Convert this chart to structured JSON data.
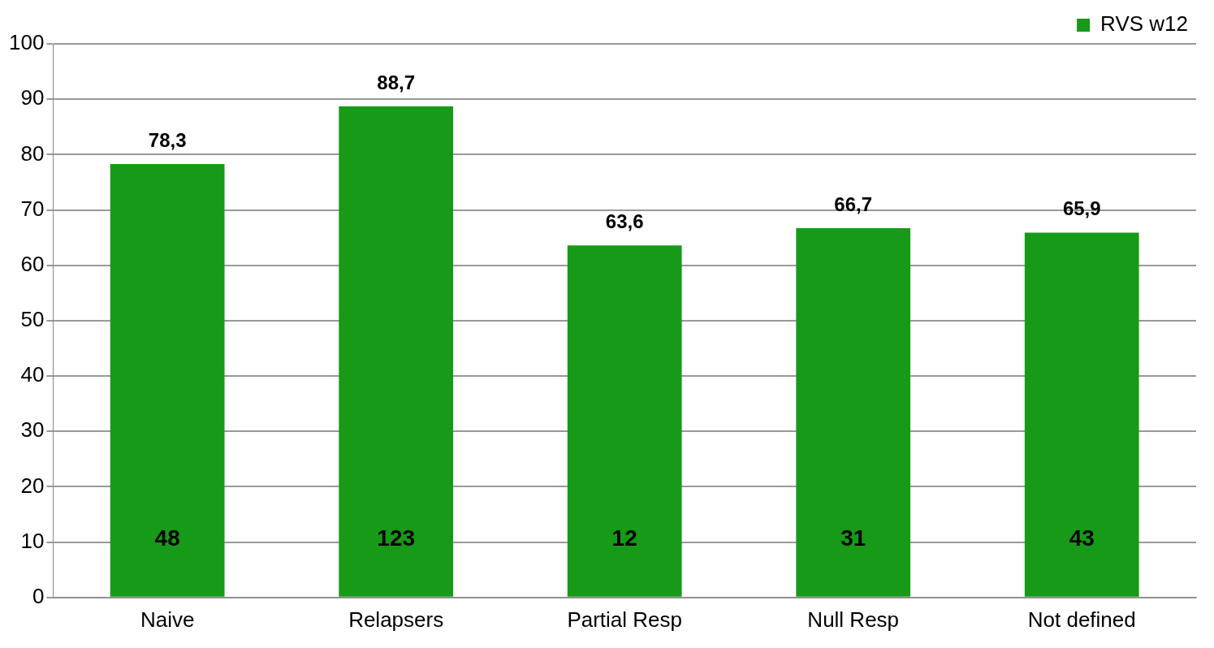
{
  "chart_data": {
    "type": "bar",
    "categories": [
      "Naive",
      "Relapsers",
      "Partial Resp",
      "Null Resp",
      "Not defined"
    ],
    "series": [
      {
        "name": "RVS w12",
        "color": "#179a17",
        "values": [
          78.3,
          88.7,
          63.6,
          66.7,
          65.9
        ],
        "value_labels": [
          "78,3",
          "88,7",
          "63,6",
          "66,7",
          "65,9"
        ]
      }
    ],
    "ylim": [
      0,
      100
    ],
    "yticks": [
      0,
      10,
      20,
      30,
      40,
      50,
      60,
      70,
      80,
      90,
      100
    ],
    "grid": "y",
    "legend": "top right",
    "annotations": [
      "48",
      "123",
      "12",
      "31",
      "43"
    ]
  }
}
